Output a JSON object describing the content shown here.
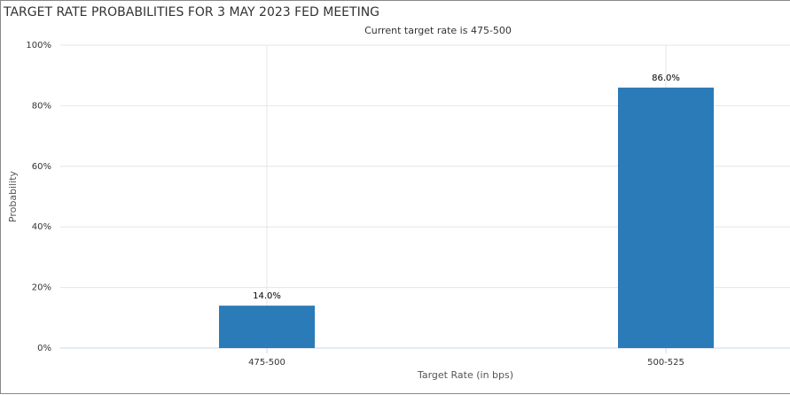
{
  "chart_data": {
    "type": "bar",
    "title": "TARGET RATE PROBABILITIES FOR 3 MAY 2023 FED MEETING",
    "subtitle": "Current target rate is 475-500",
    "x_label": "Target Rate (in bps)",
    "y_label": "Probability",
    "categories": [
      "475-500",
      "500-525"
    ],
    "values": [
      14.0,
      86.0
    ],
    "value_labels": [
      "14.0%",
      "86.0%"
    ],
    "color": "#2b7bb9",
    "ylim": [
      0,
      100
    ],
    "yticks": [
      {
        "value": 0,
        "label": "0%"
      },
      {
        "value": 20,
        "label": "20%"
      },
      {
        "value": 40,
        "label": "40%"
      },
      {
        "value": 60,
        "label": "60%"
      },
      {
        "value": 80,
        "label": "80%"
      },
      {
        "value": 100,
        "label": "100%"
      }
    ],
    "grid": true
  }
}
